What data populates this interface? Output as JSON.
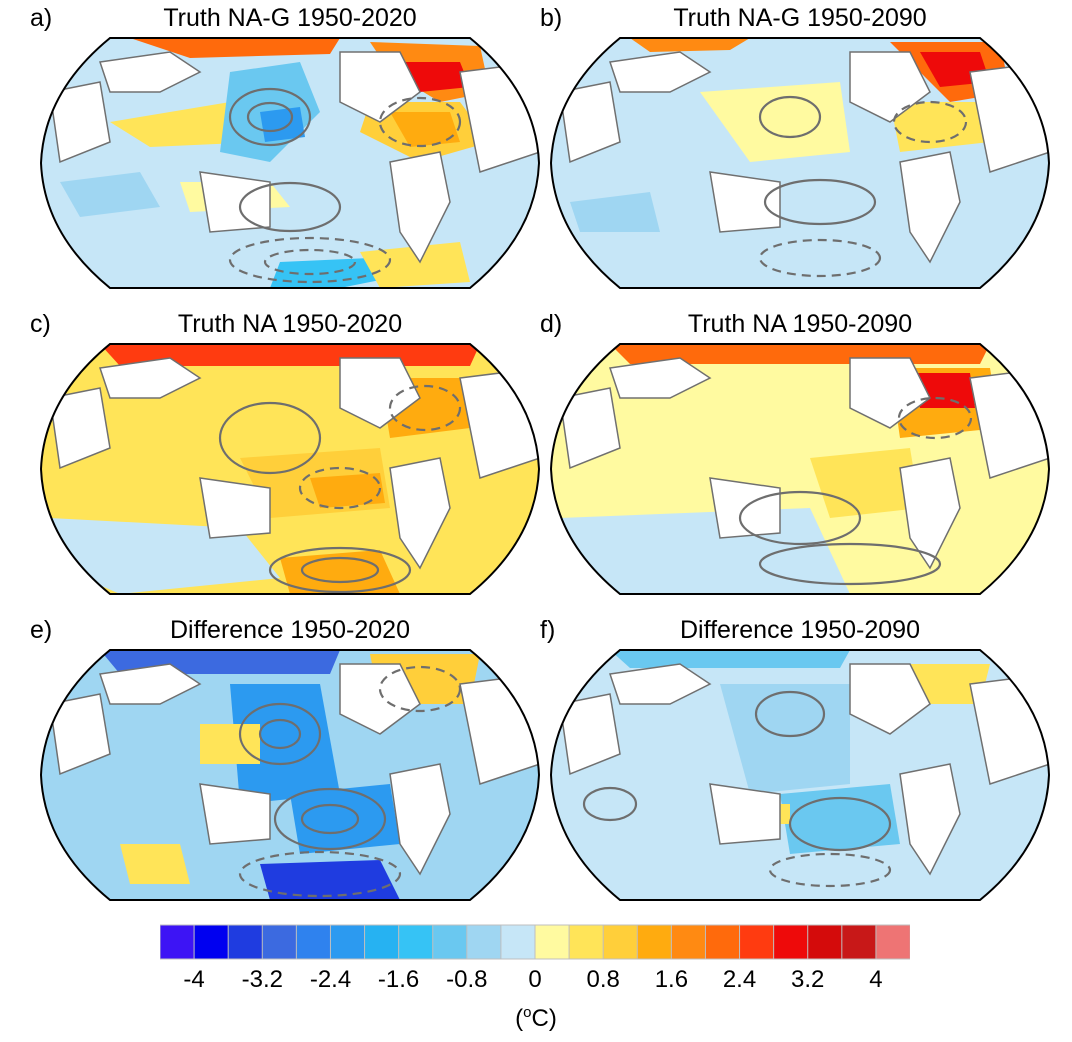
{
  "panels": [
    {
      "letter": "a)",
      "title": "Truth NA-G 1950-2020"
    },
    {
      "letter": "b)",
      "title": "Truth NA-G 1950-2090"
    },
    {
      "letter": "c)",
      "title": "Truth NA 1950-2020"
    },
    {
      "letter": "d)",
      "title": "Truth NA 1950-2090"
    },
    {
      "letter": "e)",
      "title": "Difference 1950-2020"
    },
    {
      "letter": "f)",
      "title": "Difference 1950-2090"
    }
  ],
  "colorbar": {
    "tick_labels": [
      "-4",
      "-3.2",
      "-2.4",
      "-1.6",
      "-0.8",
      "0",
      "0.8",
      "1.6",
      "2.4",
      "3.2",
      "4"
    ],
    "units_prefix": "(",
    "units_sup": "o",
    "units_suffix": "C)",
    "colors": [
      "#3d14f5",
      "#0000f0",
      "#1f3ce0",
      "#3c6ae0",
      "#2f82ee",
      "#2c9af0",
      "#26b2f2",
      "#36c3f5",
      "#6ac8f0",
      "#9fd6f2",
      "#c6e6f7",
      "#fffaa0",
      "#ffe458",
      "#ffcf3a",
      "#ffab0f",
      "#ff8a12",
      "#ff6a0c",
      "#ff3b10",
      "#ee0a0a",
      "#d40b0b",
      "#c81818",
      "#ee7474"
    ]
  }
}
